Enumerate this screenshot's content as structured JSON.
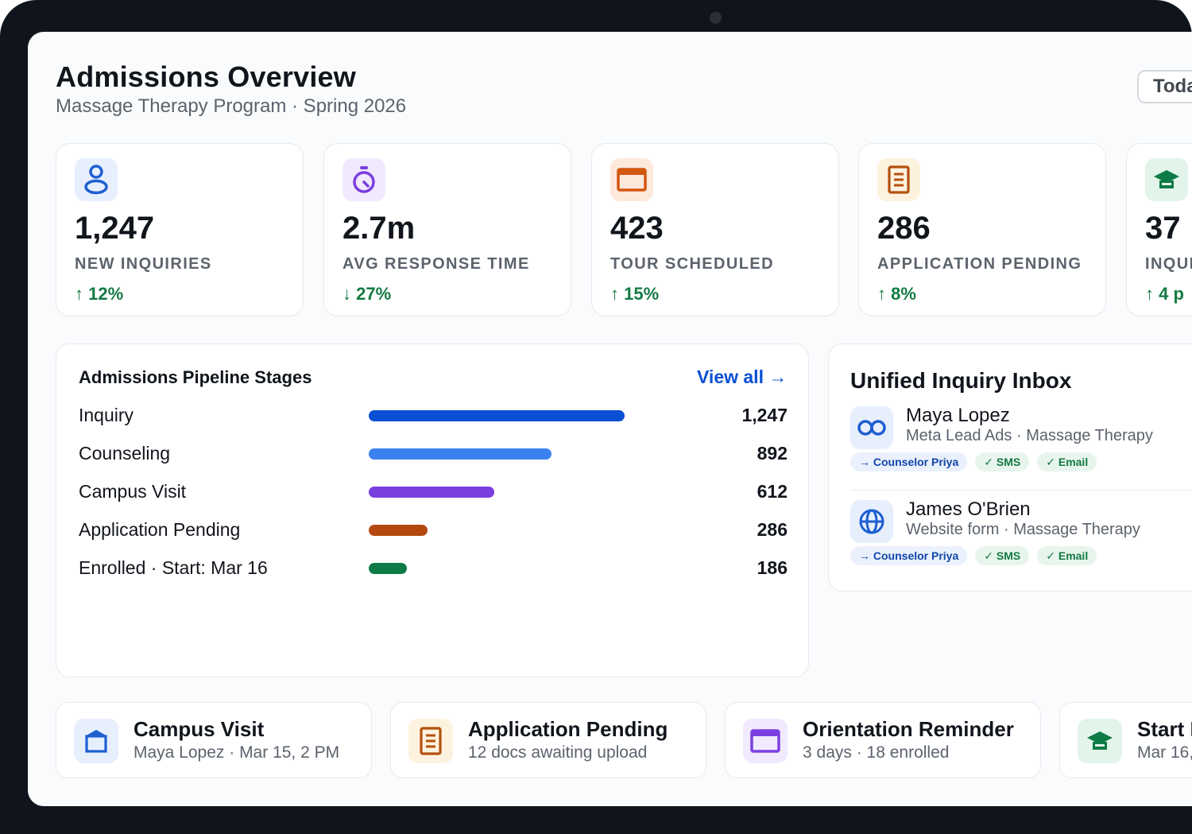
{
  "header": {
    "title": "Admissions Overview",
    "subtitle": "Massage Therapy Program · Spring 2026",
    "date_button": "Toda"
  },
  "kpis": [
    {
      "value": "1,247",
      "label": "NEW INQUIRIES",
      "trend": "↑ 12%",
      "icon": "person-icon",
      "color": "#1d5fd1",
      "bg": "#e7effd"
    },
    {
      "value": "2.7m",
      "label": "AVG RESPONSE TIME",
      "trend": "↓ 27%",
      "icon": "stopwatch-icon",
      "color": "#7a3fe0",
      "bg": "#f1e9fd"
    },
    {
      "value": "423",
      "label": "TOUR SCHEDULED",
      "trend": "↑ 15%",
      "icon": "calendar-icon",
      "color": "#d2570f",
      "bg": "#fde8dc"
    },
    {
      "value": "286",
      "label": "APPLICATION PENDING",
      "trend": "↑ 8%",
      "icon": "document-icon",
      "color": "#b4510f",
      "bg": "#fdf2de"
    },
    {
      "value": "37",
      "label": "INQUI",
      "trend": "↑ 4 p",
      "icon": "graduation-cap-icon",
      "color": "#0e7a45",
      "bg": "#e3f5ea"
    }
  ],
  "pipeline": {
    "title": "Admissions Pipeline Stages",
    "view_all": "View all →",
    "stages": [
      {
        "name": "Inquiry",
        "count": "1,247",
        "value": 1247,
        "color": "#0a4fd4"
      },
      {
        "name": "Counseling",
        "count": "892",
        "value": 892,
        "color": "#3b82f0"
      },
      {
        "name": "Campus Visit",
        "count": "612",
        "value": 612,
        "color": "#7a3fe0"
      },
      {
        "name": "Application Pending",
        "count": "286",
        "value": 286,
        "color": "#b4480f"
      },
      {
        "name": "Enrolled · Start: Mar 16",
        "count": "186",
        "value": 186,
        "color": "#0e7a45"
      }
    ]
  },
  "inbox": {
    "title": "Unified Inquiry Inbox",
    "items": [
      {
        "name": "Maya Lopez",
        "source": "Meta Lead Ads · Massage Therapy",
        "icon": "meta-icon",
        "tags": {
          "counselor": "→ Counselor Priya",
          "sms": "✓ SMS",
          "email": "✓ Email"
        }
      },
      {
        "name": "James O'Brien",
        "source": "Website form · Massage Therapy",
        "icon": "globe-icon",
        "tags": {
          "counselor": "→ Counselor Priya",
          "sms": "✓ SMS",
          "email": "✓ Email"
        }
      }
    ]
  },
  "tasks": [
    {
      "title": "Campus Visit",
      "subtitle": "Maya Lopez · Mar 15, 2 PM",
      "icon": "building-icon",
      "color": "#1d5fd1",
      "bg": "#e7effd"
    },
    {
      "title": "Application Pending",
      "subtitle": "12 docs awaiting upload",
      "icon": "document-icon",
      "color": "#b4510f",
      "bg": "#fdf2de"
    },
    {
      "title": "Orientation Reminder",
      "subtitle": "3 days · 18 enrolled",
      "icon": "calendar-icon",
      "color": "#7a3fe0",
      "bg": "#f1e9fd"
    },
    {
      "title": "Start I",
      "subtitle": "Mar 16,",
      "icon": "graduation-cap-icon",
      "color": "#0e7a45",
      "bg": "#e3f5ea"
    }
  ]
}
